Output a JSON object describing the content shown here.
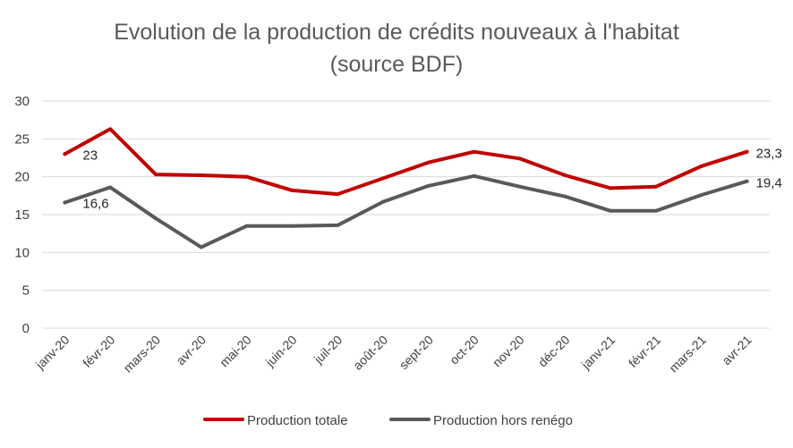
{
  "chart_data": {
    "type": "line",
    "title": "Evolution de la production de crédits nouveaux à l'habitat",
    "subtitle": "(source BDF)",
    "categories": [
      "janv-20",
      "févr-20",
      "mars-20",
      "avr-20",
      "mai-20",
      "juin-20",
      "juil-20",
      "août-20",
      "sept-20",
      "oct-20",
      "nov-20",
      "déc-20",
      "janv-21",
      "févr-21",
      "mars-21",
      "avr-21"
    ],
    "series": [
      {
        "name": "Production totale",
        "color": "#C00000",
        "values": [
          23,
          26.3,
          20.3,
          20.2,
          20.0,
          18.2,
          17.7,
          19.8,
          21.9,
          23.3,
          22.4,
          20.2,
          18.5,
          18.7,
          21.4,
          23.3
        ],
        "labels": {
          "0": "23",
          "15": "23,3"
        }
      },
      {
        "name": "Production hors renégo",
        "color": "#595959",
        "values": [
          16.6,
          18.6,
          14.5,
          10.7,
          13.5,
          13.5,
          13.6,
          16.7,
          18.8,
          20.1,
          18.7,
          17.4,
          15.5,
          15.5,
          17.6,
          19.4
        ],
        "labels": {
          "0": "16,6",
          "15": "19,4"
        }
      }
    ],
    "yticks": [
      "0",
      "5",
      "10",
      "15",
      "20",
      "25",
      "30"
    ],
    "ylim": [
      0,
      30
    ],
    "grid": true,
    "legend": "bottom"
  }
}
